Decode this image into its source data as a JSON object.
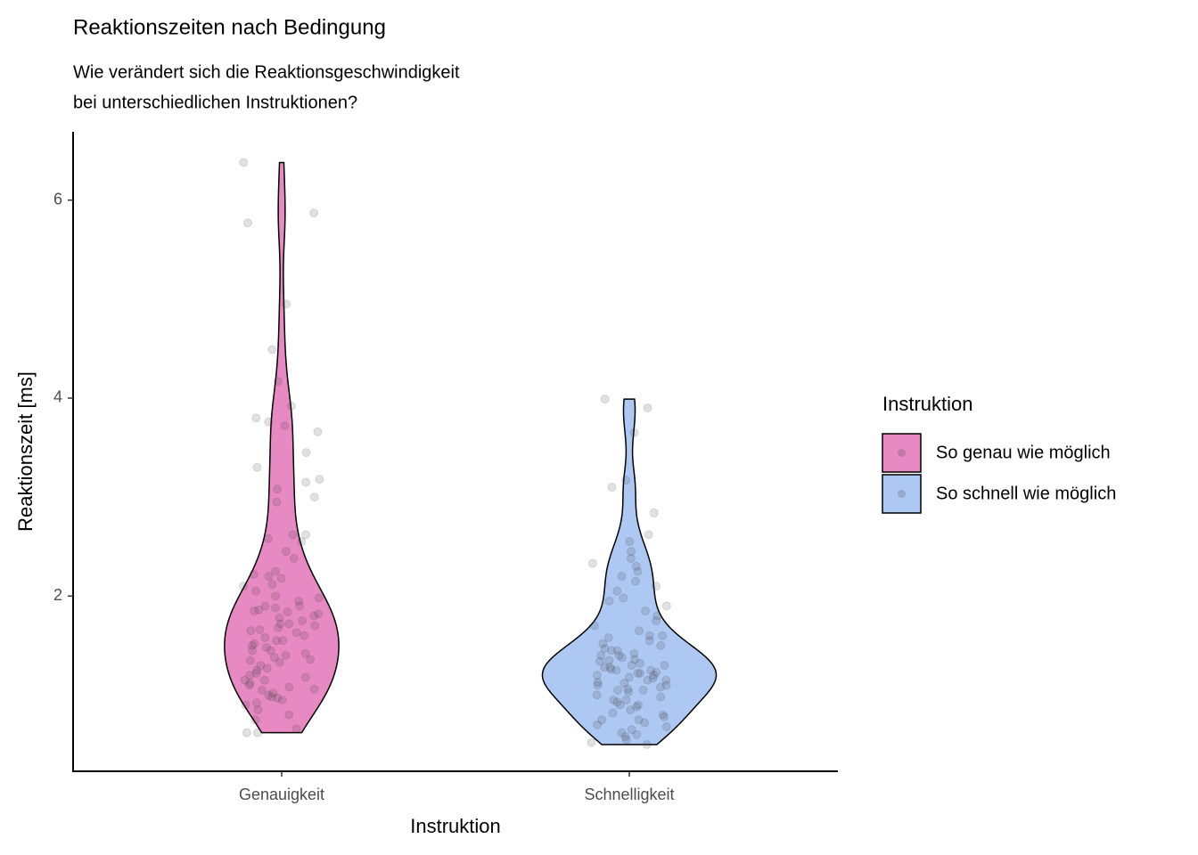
{
  "chart_data": {
    "type": "violin",
    "title": "Reaktionszeiten nach Bedingung",
    "subtitle": [
      "Wie verändert sich die Reaktionsgeschwindigkeit",
      "bei unterschiedlichen Instruktionen?"
    ],
    "x_label": "Instruktion",
    "y_label": "Reaktionszeit [ms]",
    "legend_title": "Instruktion",
    "categories": [
      "Genauigkeit",
      "Schnelligkeit"
    ],
    "ylim": [
      0.23,
      6.69
    ],
    "yticks": [
      2,
      4,
      6
    ],
    "grid": false,
    "series": [
      {
        "name": "So genau wie möglich",
        "color": "#e78ac3",
        "values": [
          6.38,
          5.87,
          5.77,
          4.95,
          4.49,
          4.17,
          3.92,
          3.8,
          3.76,
          3.72,
          3.66,
          3.45,
          3.3,
          3.18,
          3.15,
          3.08,
          3.0,
          2.95,
          2.62,
          2.58,
          2.55,
          2.45,
          2.38,
          2.25,
          2.22,
          2.2,
          2.18,
          2.1,
          2.05,
          2.0,
          1.98,
          1.95,
          1.9,
          1.88,
          1.86,
          1.84,
          1.82,
          1.8,
          1.78,
          1.75,
          1.72,
          1.7,
          1.68,
          1.66,
          1.63,
          1.6,
          1.58,
          1.55,
          1.52,
          1.5,
          1.48,
          1.45,
          1.42,
          1.4,
          1.38,
          1.36,
          1.33,
          1.3,
          1.27,
          1.25,
          1.22,
          1.2,
          1.18,
          1.15,
          1.12,
          1.1,
          1.08,
          1.05,
          1.02,
          1.0,
          0.98,
          0.95,
          0.92,
          0.9,
          0.85,
          0.8,
          0.75,
          0.66,
          0.62,
          0.62,
          1.9,
          1.55,
          1.35,
          1.15,
          1.65,
          2.12,
          1.72,
          1.45,
          0.97,
          1.06,
          2.62,
          1.85
        ]
      },
      {
        "name": "So schnell wie möglich",
        "color": "#aec8f4",
        "values": [
          3.99,
          3.9,
          3.65,
          3.17,
          3.1,
          2.84,
          2.62,
          2.55,
          2.45,
          2.38,
          2.33,
          2.3,
          2.25,
          2.2,
          2.1,
          2.05,
          1.98,
          1.95,
          1.9,
          1.85,
          1.8,
          1.75,
          1.7,
          1.65,
          1.6,
          1.58,
          1.55,
          1.52,
          1.5,
          1.47,
          1.45,
          1.42,
          1.4,
          1.38,
          1.36,
          1.34,
          1.32,
          1.3,
          1.28,
          1.26,
          1.25,
          1.23,
          1.22,
          1.2,
          1.18,
          1.17,
          1.15,
          1.13,
          1.12,
          1.1,
          1.08,
          1.06,
          1.05,
          1.03,
          1.0,
          0.98,
          0.95,
          0.93,
          0.9,
          0.88,
          0.85,
          0.82,
          0.8,
          0.78,
          0.75,
          0.72,
          0.7,
          0.68,
          0.65,
          0.62,
          0.6,
          0.58,
          0.55,
          0.52,
          0.5,
          1.25,
          1.35,
          1.2,
          1.15,
          1.45,
          1.1,
          1.3,
          0.9,
          1.05,
          1.6,
          0.75,
          1.22,
          1.4,
          0.95,
          2.15,
          1.28
        ]
      }
    ]
  }
}
